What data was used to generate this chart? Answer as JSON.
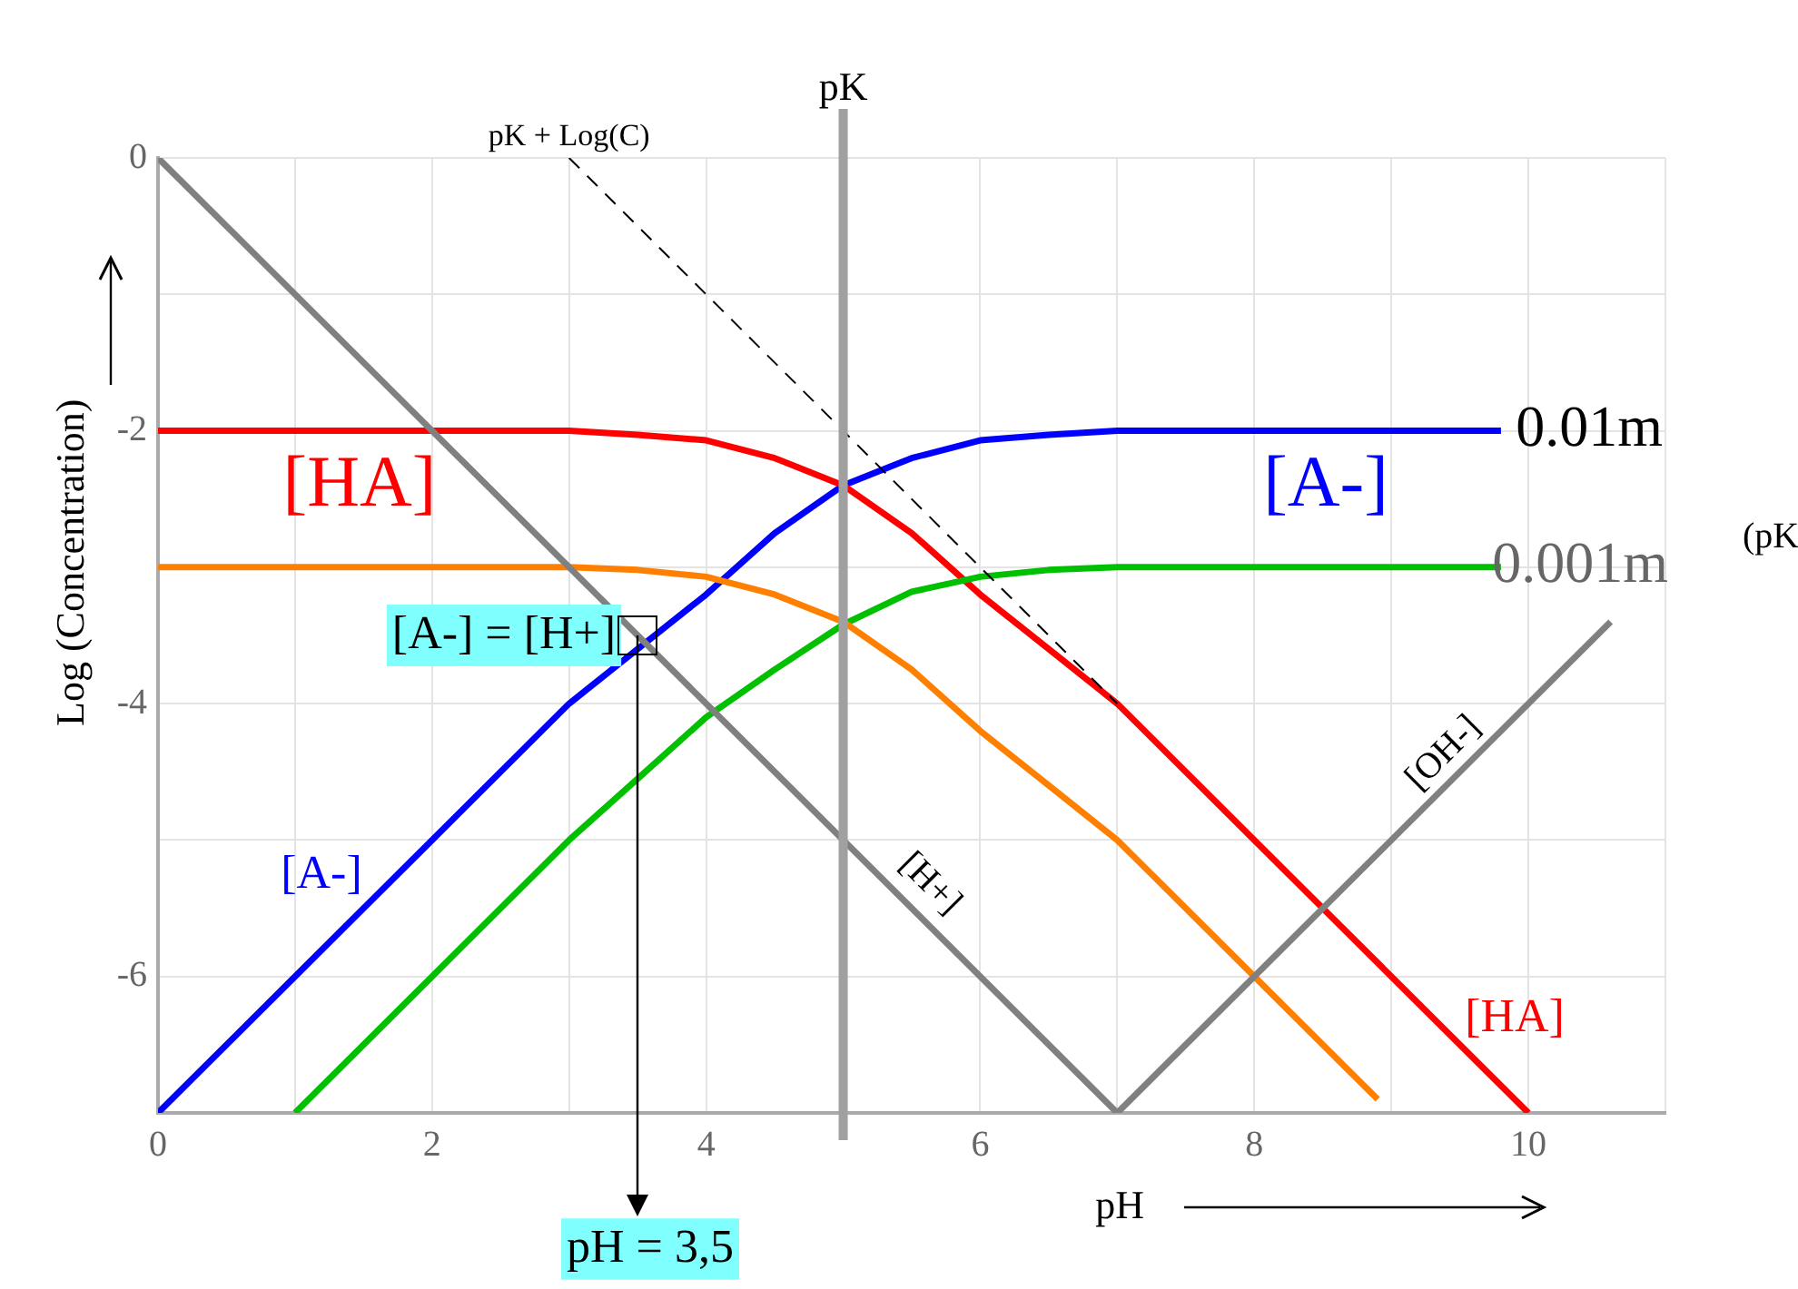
{
  "chart_data": {
    "type": "line",
    "xlabel": "pH",
    "ylabel": "Log (Concentration)",
    "xlim": [
      0,
      11
    ],
    "ylim": [
      -7,
      0
    ],
    "xticks": [
      0,
      {
        "value": 1,
        "label": null
      },
      2,
      {
        "value": 3,
        "label": null
      },
      4,
      {
        "value": 5,
        "label": null
      },
      6,
      {
        "value": 7,
        "label": null
      },
      8,
      {
        "value": 9,
        "label": null
      },
      10,
      {
        "value": 11,
        "label": null
      }
    ],
    "yticks": [
      0,
      {
        "value": -1,
        "label": null
      },
      -2,
      {
        "value": -3,
        "label": null
      },
      -4,
      {
        "value": -5,
        "label": null
      },
      -6,
      {
        "value": -7,
        "label": null
      }
    ],
    "grid": true,
    "legend": false,
    "marker": "none",
    "ref_lines": [
      {
        "axis": "x",
        "value": 5,
        "label": "pK",
        "color": "#a0a0a0"
      }
    ],
    "series": [
      {
        "color": "#808080",
        "x": [
          0,
          7
        ],
        "values": [
          0,
          -7
        ]
      },
      {
        "color": "#808080",
        "x": [
          7,
          10.6
        ],
        "values": [
          -7,
          -3.4
        ]
      },
      {
        "color": "#000000",
        "line_style": "dashed",
        "x": [
          3,
          7
        ],
        "values": [
          0,
          -4
        ]
      },
      {
        "color": "#ff8000",
        "x": [
          0,
          1,
          2,
          3,
          3.5,
          4,
          4.5,
          5,
          5.5,
          6,
          6.5,
          7,
          8,
          8.9
        ],
        "values": [
          -3,
          -3,
          -3,
          -3,
          -3.02,
          -3.07,
          -3.2,
          -3.4,
          -3.75,
          -4.2,
          -4.6,
          -5,
          -6,
          -6.9
        ]
      },
      {
        "color": "#00c000",
        "x": [
          1,
          2,
          3,
          3.5,
          4,
          4.5,
          5,
          5.5,
          6,
          6.5,
          7,
          8,
          9,
          9.8
        ],
        "values": [
          -7,
          -6,
          -5,
          -4.55,
          -4.1,
          -3.75,
          -3.42,
          -3.18,
          -3.07,
          -3.02,
          -3,
          -3,
          -3,
          -3
        ]
      },
      {
        "color": "#ff0000",
        "x": [
          0,
          1,
          2,
          3,
          3.5,
          4,
          4.5,
          5,
          5.5,
          6,
          6.5,
          7,
          8,
          9,
          10
        ],
        "values": [
          -2,
          -2,
          -2,
          -2,
          -2.03,
          -2.07,
          -2.2,
          -2.4,
          -2.75,
          -3.2,
          -3.6,
          -4,
          -5,
          -6,
          -7
        ]
      },
      {
        "color": "#0000ff",
        "x": [
          0,
          1,
          2,
          3,
          3.5,
          4,
          4.5,
          5,
          5.5,
          6,
          6.5,
          7,
          8,
          9,
          9.8
        ],
        "values": [
          -7,
          -6,
          -5,
          -4,
          -3.6,
          -3.2,
          -2.75,
          -2.4,
          -2.2,
          -2.07,
          -2.03,
          -2,
          -2,
          -2,
          -2
        ]
      }
    ],
    "annotations": [
      {
        "text": "pK + Log(C)",
        "x": 3,
        "y": 0
      },
      {
        "text": "[A-] = [H+]",
        "x": 3.5,
        "y": -3.5
      },
      "[HA]",
      "[A-]",
      "[A-]",
      "[H+]",
      "[OH-]",
      "[HA]",
      "pH = 3,5",
      "0.01m",
      "0.001m",
      "(pK"
    ]
  }
}
